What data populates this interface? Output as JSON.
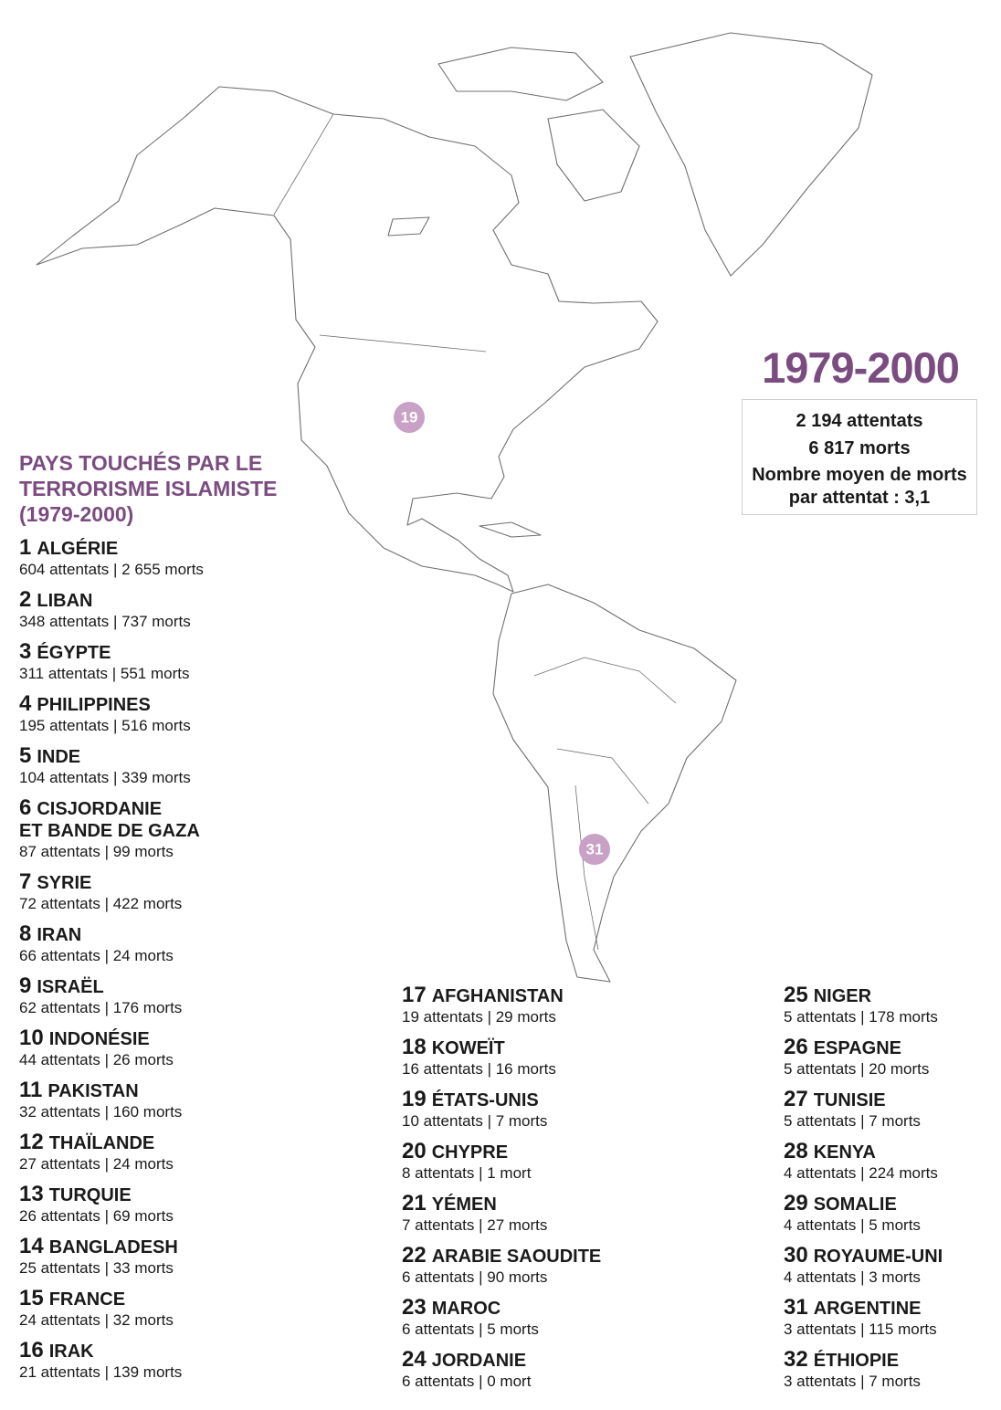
{
  "period_title": "1979-2000",
  "summary": {
    "attacks": "2 194 attentats",
    "deaths": "6 817 morts",
    "average": "Nombre moyen de morts par attentat : 3,1"
  },
  "list_title": "PAYS TOUCHÉS PAR LE TERRORISME ISLAMISTE (1979-2000)",
  "map_markers": [
    {
      "label": "19"
    },
    {
      "label": "31"
    }
  ],
  "countries": [
    {
      "rank": 1,
      "name": "ALGÉRIE",
      "detail": "604 attentats | 2 655 morts"
    },
    {
      "rank": 2,
      "name": "LIBAN",
      "detail": "348 attentats | 737 morts"
    },
    {
      "rank": 3,
      "name": "ÉGYPTE",
      "detail": "311 attentats | 551 morts"
    },
    {
      "rank": 4,
      "name": "PHILIPPINES",
      "detail": "195 attentats | 516 morts"
    },
    {
      "rank": 5,
      "name": "INDE",
      "detail": "104 attentats | 339 morts"
    },
    {
      "rank": 6,
      "name": "CISJORDANIE\nET BANDE DE GAZA",
      "detail": "87 attentats | 99 morts"
    },
    {
      "rank": 7,
      "name": "SYRIE",
      "detail": "72 attentats | 422 morts"
    },
    {
      "rank": 8,
      "name": "IRAN",
      "detail": "66 attentats | 24 morts"
    },
    {
      "rank": 9,
      "name": "ISRAËL",
      "detail": "62 attentats | 176 morts"
    },
    {
      "rank": 10,
      "name": "INDONÉSIE",
      "detail": "44 attentats | 26 morts"
    },
    {
      "rank": 11,
      "name": "PAKISTAN",
      "detail": "32 attentats | 160 morts"
    },
    {
      "rank": 12,
      "name": "THAÏLANDE",
      "detail": "27 attentats | 24 morts"
    },
    {
      "rank": 13,
      "name": "TURQUIE",
      "detail": "26 attentats | 69 morts"
    },
    {
      "rank": 14,
      "name": "BANGLADESH",
      "detail": "25 attentats | 33 morts"
    },
    {
      "rank": 15,
      "name": "FRANCE",
      "detail": "24 attentats | 32 morts"
    },
    {
      "rank": 16,
      "name": "IRAK",
      "detail": "21 attentats | 139 morts"
    },
    {
      "rank": 17,
      "name": "AFGHANISTAN",
      "detail": "19 attentats | 29 morts"
    },
    {
      "rank": 18,
      "name": "KOWEÏT",
      "detail": "16 attentats | 16 morts"
    },
    {
      "rank": 19,
      "name": "ÉTATS-UNIS",
      "detail": "10 attentats | 7 morts"
    },
    {
      "rank": 20,
      "name": "CHYPRE",
      "detail": "8 attentats | 1 mort"
    },
    {
      "rank": 21,
      "name": "YÉMEN",
      "detail": "7 attentats | 27 morts"
    },
    {
      "rank": 22,
      "name": "ARABIE SAOUDITE",
      "detail": "6 attentats | 90 morts"
    },
    {
      "rank": 23,
      "name": "MAROC",
      "detail": "6 attentats | 5 morts"
    },
    {
      "rank": 24,
      "name": "JORDANIE",
      "detail": "6 attentats | 0 mort"
    },
    {
      "rank": 25,
      "name": "NIGER",
      "detail": "5 attentats | 178 morts"
    },
    {
      "rank": 26,
      "name": "ESPAGNE",
      "detail": "5 attentats | 20 morts"
    },
    {
      "rank": 27,
      "name": "TUNISIE",
      "detail": "5 attentats | 7 morts"
    },
    {
      "rank": 28,
      "name": "KENYA",
      "detail": "4 attentats | 224 morts"
    },
    {
      "rank": 29,
      "name": "SOMALIE",
      "detail": "4 attentats | 5 morts"
    },
    {
      "rank": 30,
      "name": "ROYAUME-UNI",
      "detail": "4 attentats | 3 morts"
    },
    {
      "rank": 31,
      "name": "ARGENTINE",
      "detail": "3 attentats | 115 morts"
    },
    {
      "rank": 32,
      "name": "ÉTHIOPIE",
      "detail": "3 attentats | 7 morts"
    }
  ]
}
